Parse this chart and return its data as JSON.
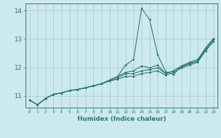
{
  "title": "",
  "xlabel": "Humidex (Indice chaleur)",
  "background_color": "#cce8f0",
  "grid_color": "#aaccd4",
  "line_color": "#2a7a6a",
  "xlim": [
    -0.5,
    23.5
  ],
  "ylim": [
    10.58,
    14.25
  ],
  "yticks": [
    11,
    12,
    13,
    14
  ],
  "xticks": [
    0,
    1,
    2,
    3,
    4,
    5,
    6,
    7,
    8,
    9,
    10,
    11,
    12,
    13,
    14,
    15,
    16,
    17,
    18,
    19,
    20,
    21,
    22,
    23
  ],
  "lines": [
    [
      10.85,
      10.68,
      10.9,
      11.05,
      11.1,
      11.18,
      11.22,
      11.28,
      11.35,
      11.42,
      11.55,
      11.68,
      12.08,
      12.28,
      14.08,
      13.68,
      12.45,
      11.85,
      11.75,
      12.05,
      12.15,
      12.22,
      12.68,
      13.02
    ],
    [
      10.85,
      10.68,
      10.9,
      11.05,
      11.1,
      11.18,
      11.22,
      11.28,
      11.35,
      11.42,
      11.55,
      11.68,
      11.82,
      11.88,
      12.05,
      11.98,
      12.08,
      11.78,
      11.88,
      12.05,
      12.18,
      12.28,
      12.68,
      13.02
    ],
    [
      10.85,
      10.68,
      10.9,
      11.05,
      11.1,
      11.18,
      11.22,
      11.28,
      11.35,
      11.42,
      11.52,
      11.62,
      11.78,
      11.78,
      11.88,
      11.92,
      11.98,
      11.78,
      11.88,
      12.02,
      12.12,
      12.22,
      12.62,
      12.98
    ],
    [
      10.85,
      10.68,
      10.9,
      11.05,
      11.1,
      11.18,
      11.22,
      11.28,
      11.35,
      11.42,
      11.52,
      11.58,
      11.68,
      11.68,
      11.78,
      11.82,
      11.88,
      11.72,
      11.82,
      11.98,
      12.08,
      12.18,
      12.58,
      12.92
    ]
  ]
}
